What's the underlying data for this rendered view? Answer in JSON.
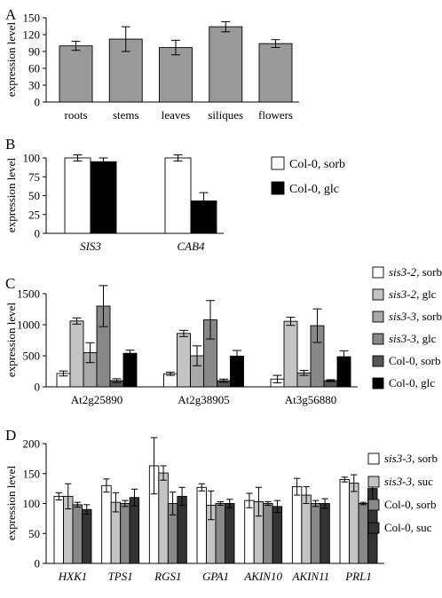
{
  "chart_data": [
    {
      "panel": "A",
      "type": "bar",
      "ylabel": "expression level",
      "ylim": [
        0,
        150
      ],
      "yticks": [
        0,
        30,
        60,
        90,
        120,
        150
      ],
      "categories": [
        "roots",
        "stems",
        "leaves",
        "siliques",
        "flowers"
      ],
      "series": [
        {
          "values": [
            100,
            112,
            97,
            134,
            104
          ],
          "errors": [
            8,
            22,
            13,
            9,
            7
          ],
          "color": "#9a9a9a"
        }
      ]
    },
    {
      "panel": "B",
      "type": "bar",
      "ylabel": "expression level",
      "ylim": [
        0,
        100
      ],
      "yticks": [
        0,
        25,
        50,
        75,
        100
      ],
      "categories": [
        "SIS3",
        "CAB4"
      ],
      "series": [
        {
          "name": "Col-0, sorb",
          "values": [
            100,
            100
          ],
          "errors": [
            4,
            4
          ],
          "color": "#ffffff"
        },
        {
          "name": "Col-0, glc",
          "values": [
            95,
            43
          ],
          "errors": [
            5,
            11
          ],
          "color": "#000000"
        }
      ],
      "legend": "right"
    },
    {
      "panel": "C",
      "type": "bar",
      "ylabel": "expression level",
      "ylim": [
        0,
        1500
      ],
      "yticks": [
        0,
        500,
        1000,
        1500
      ],
      "categories": [
        "At2g25890",
        "At2g38905",
        "At3g56880"
      ],
      "series": [
        {
          "name_gene": "sis3-2",
          "name_rest": ", sorb",
          "values": [
            215,
            210,
            125
          ],
          "errors": [
            40,
            25,
            60
          ],
          "color": "#ffffff"
        },
        {
          "name_gene": "sis3-2",
          "name_rest": ", glc",
          "values": [
            1060,
            860,
            1055
          ],
          "errors": [
            50,
            50,
            65
          ],
          "color": "#c4c4c4"
        },
        {
          "name_gene": "sis3-3",
          "name_rest": ", sorb",
          "values": [
            550,
            500,
            225
          ],
          "errors": [
            160,
            160,
            40
          ],
          "color": "#a8a8a8"
        },
        {
          "name_gene": "sis3-3",
          "name_rest": ", glc",
          "values": [
            1300,
            1080,
            985
          ],
          "errors": [
            330,
            310,
            270
          ],
          "color": "#888888"
        },
        {
          "name_gene": "",
          "name_rest": "Col-0, sorb",
          "values": [
            100,
            100,
            100
          ],
          "errors": [
            30,
            25,
            15
          ],
          "color": "#555555"
        },
        {
          "name_gene": "",
          "name_rest": "Col-0, glc",
          "values": [
            540,
            495,
            485
          ],
          "errors": [
            50,
            90,
            95
          ],
          "color": "#000000"
        }
      ],
      "legend": "right"
    },
    {
      "panel": "D",
      "type": "bar",
      "ylabel": "expression level",
      "ylim": [
        0,
        200
      ],
      "yticks": [
        0,
        50,
        100,
        150,
        200
      ],
      "categories": [
        "HXK1",
        "TPS1",
        "RGS1",
        "GPA1",
        "AKIN10",
        "AKIN11",
        "PRL1"
      ],
      "series": [
        {
          "name_gene": "sis3-3",
          "name_rest": ", sorb",
          "values": [
            112,
            130,
            163,
            127,
            105,
            128,
            140
          ],
          "errors": [
            6,
            11,
            47,
            6,
            12,
            14,
            4
          ],
          "color": "#ffffff"
        },
        {
          "name_gene": "sis3-3",
          "name_rest": ", suc",
          "values": [
            112,
            102,
            151,
            97,
            103,
            114,
            134
          ],
          "errors": [
            21,
            16,
            12,
            24,
            24,
            14,
            14
          ],
          "color": "#c4c4c4"
        },
        {
          "name_gene": "",
          "name_rest": "Col-0, sorb",
          "values": [
            98,
            100,
            100,
            100,
            100,
            100,
            100
          ],
          "errors": [
            4,
            5,
            19,
            3,
            3,
            5,
            2
          ],
          "color": "#888888"
        },
        {
          "name_gene": "",
          "name_rest": "Col-0, suc",
          "values": [
            90,
            110,
            112,
            100,
            95,
            100,
            125
          ],
          "errors": [
            8,
            14,
            15,
            7,
            10,
            8,
            19
          ],
          "color": "#333333"
        }
      ],
      "legend": "right"
    }
  ]
}
